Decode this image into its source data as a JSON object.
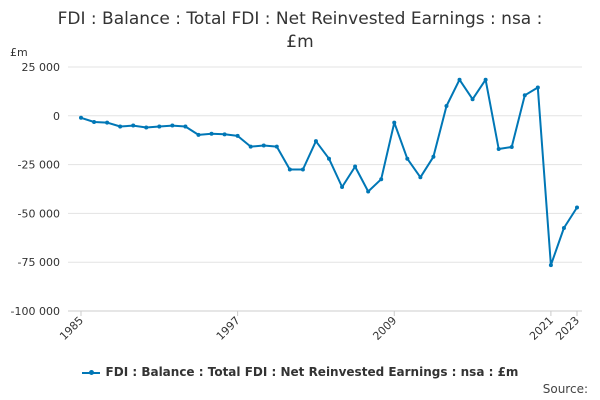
{
  "chart_data": {
    "type": "line",
    "title_line1": "FDI : Balance : Total FDI : Net Reinvested Earnings : nsa :",
    "title_line2": "£m",
    "ylabel": "£m",
    "xlabel": "",
    "ylim": [
      -100000,
      25000
    ],
    "y_ticks": [
      25000,
      0,
      -25000,
      -50000,
      -75000,
      -100000
    ],
    "y_tick_labels": [
      "25 000",
      "0",
      "-25 000",
      "-50 000",
      "-75 000",
      "-100 000"
    ],
    "x_ticks": [
      1985,
      1997,
      2009,
      2021,
      2023
    ],
    "x_tick_labels": [
      "1985",
      "1997",
      "2009",
      "2021",
      "2023"
    ],
    "grid": "horizontal",
    "series": [
      {
        "name": "FDI : Balance : Total FDI : Net Reinvested Earnings : nsa : £m",
        "color": "#0077b6",
        "x": [
          1985,
          1986,
          1987,
          1988,
          1989,
          1990,
          1991,
          1992,
          1993,
          1994,
          1995,
          1996,
          1997,
          1998,
          1999,
          2000,
          2001,
          2002,
          2003,
          2004,
          2005,
          2006,
          2007,
          2008,
          2009,
          2010,
          2011,
          2012,
          2013,
          2014,
          2015,
          2016,
          2017,
          2018,
          2019,
          2020,
          2021,
          2022,
          2023
        ],
        "values": [
          -1000,
          -3200,
          -3500,
          -5500,
          -5000,
          -6000,
          -5500,
          -5000,
          -5500,
          -9800,
          -9200,
          -9500,
          -10300,
          -15800,
          -15200,
          -15800,
          -27500,
          -27500,
          -13000,
          -22000,
          -36500,
          -26000,
          -38800,
          -32500,
          -3500,
          -22000,
          -31500,
          -21000,
          5000,
          18500,
          8500,
          18500,
          -17000,
          -16000,
          10500,
          14500,
          -76500,
          -57500,
          -47000
        ]
      }
    ],
    "legend_label": "FDI : Balance : Total FDI : Net Reinvested Earnings : nsa : £m",
    "source_label": "Source:"
  }
}
